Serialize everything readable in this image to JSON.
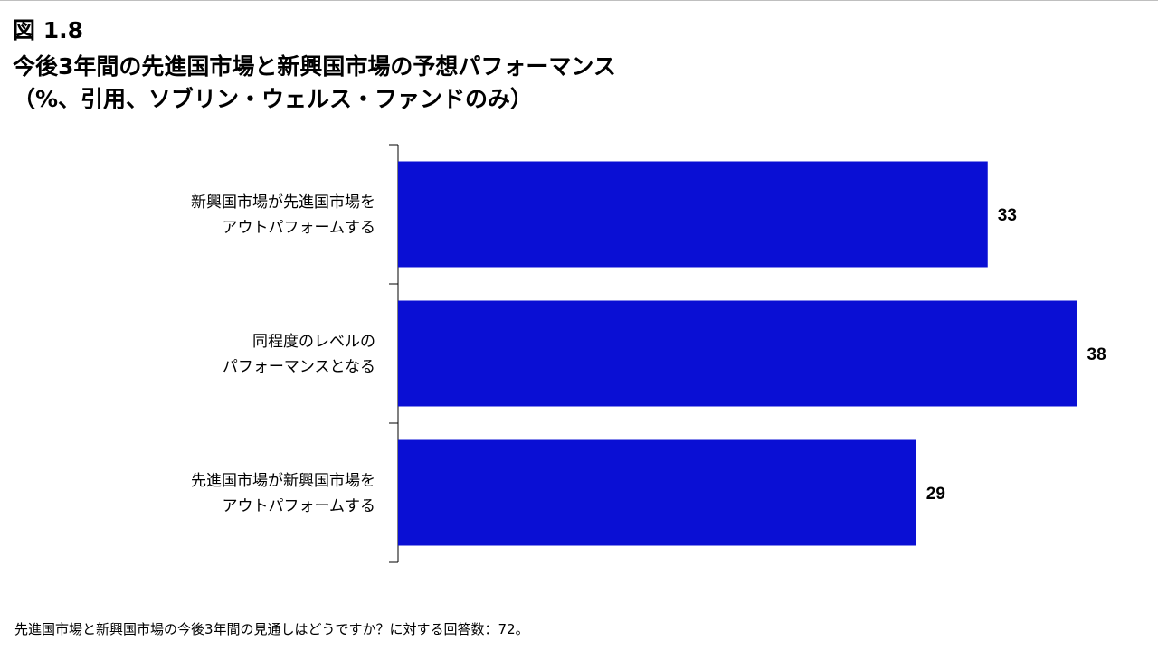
{
  "figure_label": "図 1.8",
  "title_lines": [
    "今後3年間の先進国市場と新興国市場の予想パフォーマンス",
    "（%、引用、ソブリン・ウェルス・ファンドのみ）"
  ],
  "footnote": "先進国市場と新興国市場の今後3年間の見通しはどうですか？に対する回答数：72。",
  "colors": {
    "bar": "#0a0fd4",
    "axis": "#000000",
    "top_rule": "#bfbfbf"
  },
  "chart_data": {
    "type": "bar",
    "orientation": "horizontal",
    "categories": [
      [
        "新興国市場が先進国市場を",
        "アウトパフォームする"
      ],
      [
        "同程度のレベルの",
        "パフォーマンスとなる"
      ],
      [
        "先進国市場が新興国市場を",
        "アウトパフォームする"
      ]
    ],
    "values": [
      33,
      38,
      29
    ],
    "value_labels": [
      "33",
      "38",
      "29"
    ],
    "xlim": [
      0,
      40
    ],
    "grid": false,
    "legend": "none"
  }
}
